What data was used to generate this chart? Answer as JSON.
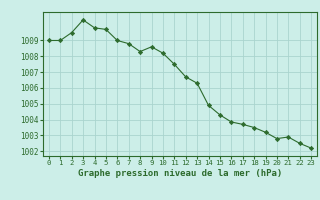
{
  "x": [
    0,
    1,
    2,
    3,
    4,
    5,
    6,
    7,
    8,
    9,
    10,
    11,
    12,
    13,
    14,
    15,
    16,
    17,
    18,
    19,
    20,
    21,
    22,
    23
  ],
  "y": [
    1009.0,
    1009.0,
    1009.5,
    1010.3,
    1009.8,
    1009.7,
    1009.0,
    1008.8,
    1008.3,
    1008.6,
    1008.2,
    1007.5,
    1006.7,
    1006.3,
    1004.9,
    1004.3,
    1003.85,
    1003.7,
    1003.5,
    1003.2,
    1002.8,
    1002.9,
    1002.5,
    1002.2
  ],
  "line_color": "#2d6b2d",
  "marker_color": "#2d6b2d",
  "bg_color": "#cceee8",
  "grid_color": "#aad4ce",
  "border_color": "#2d6b2d",
  "title": "Graphe pression niveau de la mer (hPa)",
  "ylim": [
    1001.7,
    1010.8
  ],
  "yticks": [
    1002,
    1003,
    1004,
    1005,
    1006,
    1007,
    1008,
    1009
  ],
  "xticks": [
    0,
    1,
    2,
    3,
    4,
    5,
    6,
    7,
    8,
    9,
    10,
    11,
    12,
    13,
    14,
    15,
    16,
    17,
    18,
    19,
    20,
    21,
    22,
    23
  ]
}
